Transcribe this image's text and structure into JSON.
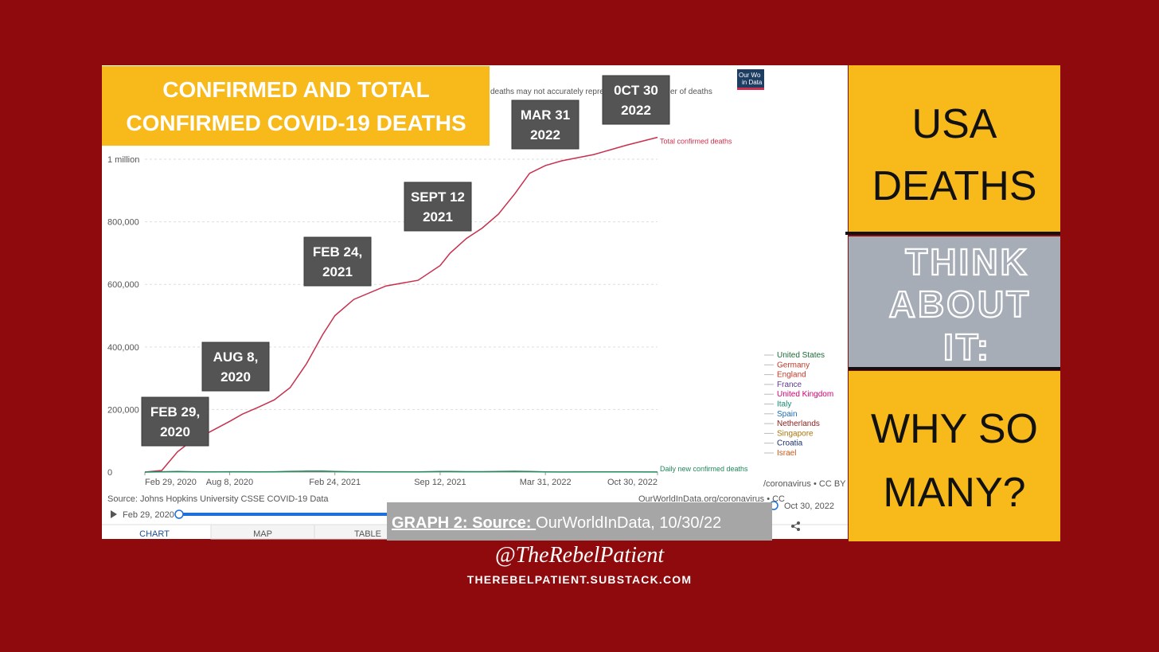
{
  "chart_data": {
    "type": "line",
    "title": [
      "CONFIRMED AND TOTAL",
      "CONFIRMED COVID-19 DEATHS"
    ],
    "subtitle_fragments": [
      "deaths may not accurately repres",
      "er of deaths"
    ],
    "logo": [
      "Our Wo",
      "in Data"
    ],
    "x": [
      "2020-02-29",
      "2020-04-01",
      "2020-05-01",
      "2020-06-01",
      "2020-07-01",
      "2020-08-08",
      "2020-09-01",
      "2020-10-01",
      "2020-11-01",
      "2020-12-01",
      "2021-01-01",
      "2021-02-01",
      "2021-02-24",
      "2021-04-01",
      "2021-06-01",
      "2021-08-01",
      "2021-09-12",
      "2021-10-01",
      "2021-11-01",
      "2021-12-01",
      "2022-01-01",
      "2022-02-01",
      "2022-03-01",
      "2022-03-31",
      "2022-05-01",
      "2022-07-01",
      "2022-09-01",
      "2022-10-30"
    ],
    "xlim": [
      "2020-02-29",
      "2022-10-30"
    ],
    "xticks": [
      {
        "value": "2020-02-29",
        "label": "Feb 29, 2020"
      },
      {
        "value": "2020-08-08",
        "label": "Aug 8, 2020"
      },
      {
        "value": "2021-02-24",
        "label": "Feb 24, 2021"
      },
      {
        "value": "2021-09-12",
        "label": "Sep 12, 2021"
      },
      {
        "value": "2022-03-31",
        "label": "Mar 31, 2022"
      },
      {
        "value": "2022-10-30",
        "label": "Oct 30, 2022"
      }
    ],
    "ylim": [
      0,
      1080000
    ],
    "yticks": [
      0,
      {
        "value": 200000,
        "label": "200,000"
      },
      {
        "value": 400000,
        "label": "400,000"
      },
      {
        "value": 600000,
        "label": "600,000"
      },
      {
        "value": 800000,
        "label": "800,000"
      },
      {
        "value": 1000000,
        "label": "1 million"
      }
    ],
    "grid": true,
    "series": [
      {
        "name": "Total confirmed deaths",
        "color": "#c8304d",
        "values": [
          0,
          5000,
          65000,
          105000,
          128000,
          162000,
          185000,
          207000,
          231000,
          270000,
          346000,
          440000,
          500000,
          552000,
          595000,
          613000,
          660000,
          700000,
          747000,
          780000,
          825000,
          890000,
          955000,
          980000,
          995000,
          1015000,
          1045000,
          1070000
        ]
      },
      {
        "name": "Daily new confirmed deaths",
        "color": "#1f8a5a",
        "values": [
          0,
          1000,
          2000,
          1000,
          600,
          1100,
          900,
          800,
          900,
          2200,
          3000,
          3200,
          2000,
          900,
          400,
          500,
          1800,
          2000,
          1200,
          1300,
          1800,
          2600,
          2000,
          700,
          350,
          400,
          450,
          350
        ]
      }
    ],
    "annotations": [
      [
        "FEB  29,",
        "2020"
      ],
      [
        "AUG 8,",
        "2020"
      ],
      [
        "FEB 24,",
        "2021"
      ],
      [
        "SEPT 12",
        "2021"
      ],
      [
        "MAR 31",
        "2022"
      ],
      [
        "0CT 30",
        "2022"
      ]
    ],
    "legend": [
      {
        "name": "United States",
        "color": "#1a6b35"
      },
      {
        "name": "Germany",
        "color": "#c0392b"
      },
      {
        "name": "England",
        "color": "#c0392b"
      },
      {
        "name": "France",
        "color": "#5b3a8c"
      },
      {
        "name": "United Kingdom",
        "color": "#d0006f"
      },
      {
        "name": "Italy",
        "color": "#138a6e"
      },
      {
        "name": "Spain",
        "color": "#1a6bb5"
      },
      {
        "name": "Netherlands",
        "color": "#8b1a1a"
      },
      {
        "name": "Singapore",
        "color": "#a8740b"
      },
      {
        "name": "Croatia",
        "color": "#1a2f6b"
      },
      {
        "name": "Israel",
        "color": "#c7591a"
      }
    ],
    "source": "Source: Johns Hopkins University CSSE COVID-19 Data",
    "site": "OurWorldInData.org/coronavirus • CC",
    "license": "/coronavirus • CC BY",
    "start_date": "Feb 29, 2020",
    "end_date": "Oct 30, 2022",
    "tabs": [
      "CHART",
      "MAP",
      "TABLE"
    ]
  },
  "caption": {
    "label": "GRAPH 2: Source: ",
    "text": "OurWorldInData, 10/30/22"
  },
  "sidebar": {
    "top": [
      "USA",
      "DEATHS"
    ],
    "middle": [
      "THINK",
      "ABOUT",
      "IT:"
    ],
    "bottom": [
      "WHY SO",
      "MANY?"
    ]
  },
  "footer": {
    "handle": "@TheRebelPatient",
    "url": "THEREBELPATIENT.SUBSTACK.COM"
  }
}
